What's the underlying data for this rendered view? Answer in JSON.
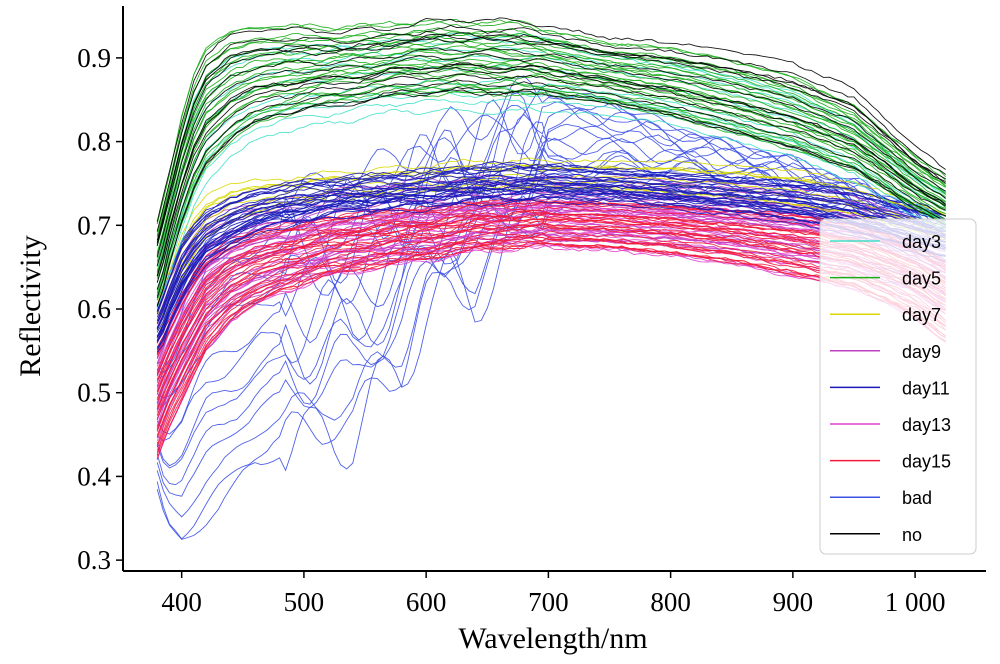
{
  "chart_data": {
    "type": "line",
    "title": "",
    "xlabel": "Wavelength/nm",
    "ylabel": "Reflectivity",
    "xlim": [
      352,
      1058
    ],
    "ylim": [
      0.287,
      0.962
    ],
    "xticks": [
      400,
      500,
      600,
      700,
      800,
      900,
      1000
    ],
    "xtick_labels": [
      "400",
      "500",
      "600",
      "700",
      "800",
      "900",
      "1 000"
    ],
    "yticks": [
      0.3,
      0.4,
      0.5,
      0.6,
      0.7,
      0.8,
      0.9
    ],
    "ytick_labels": [
      "0.3",
      "0.4",
      "0.5",
      "0.6",
      "0.7",
      "0.8",
      "0.9"
    ],
    "grid": false,
    "legend_position": "right",
    "x": [
      380,
      385,
      390,
      400,
      410,
      420,
      440,
      460,
      480,
      500,
      520,
      540,
      560,
      580,
      600,
      620,
      640,
      660,
      680,
      700,
      750,
      800,
      850,
      900,
      950,
      1000,
      1025
    ],
    "series": [
      {
        "name": "day3",
        "color": "#40e0c8",
        "upper": [
          0.68,
          0.71,
          0.74,
          0.8,
          0.85,
          0.88,
          0.9,
          0.91,
          0.915,
          0.915,
          0.915,
          0.918,
          0.92,
          0.922,
          0.925,
          0.927,
          0.927,
          0.927,
          0.927,
          0.925,
          0.905,
          0.895,
          0.88,
          0.86,
          0.825,
          0.76,
          0.74
        ],
        "lower": [
          0.6,
          0.62,
          0.64,
          0.68,
          0.72,
          0.75,
          0.78,
          0.8,
          0.81,
          0.815,
          0.82,
          0.825,
          0.83,
          0.835,
          0.835,
          0.835,
          0.835,
          0.835,
          0.835,
          0.835,
          0.83,
          0.82,
          0.8,
          0.78,
          0.75,
          0.71,
          0.69
        ],
        "count": 10
      },
      {
        "name": "day5",
        "color": "#1aad1a",
        "upper": [
          0.7,
          0.73,
          0.76,
          0.83,
          0.88,
          0.91,
          0.93,
          0.935,
          0.935,
          0.935,
          0.935,
          0.935,
          0.937,
          0.94,
          0.94,
          0.94,
          0.94,
          0.94,
          0.94,
          0.93,
          0.915,
          0.91,
          0.895,
          0.875,
          0.84,
          0.78,
          0.755
        ],
        "lower": [
          0.61,
          0.63,
          0.66,
          0.7,
          0.74,
          0.77,
          0.8,
          0.82,
          0.83,
          0.84,
          0.845,
          0.85,
          0.852,
          0.855,
          0.857,
          0.857,
          0.857,
          0.857,
          0.855,
          0.855,
          0.845,
          0.83,
          0.81,
          0.79,
          0.765,
          0.72,
          0.7
        ],
        "count": 24
      },
      {
        "name": "day7",
        "color": "#d8d800",
        "upper": [
          0.61,
          0.63,
          0.65,
          0.69,
          0.72,
          0.74,
          0.753,
          0.757,
          0.76,
          0.762,
          0.765,
          0.768,
          0.77,
          0.772,
          0.775,
          0.778,
          0.78,
          0.78,
          0.78,
          0.78,
          0.78,
          0.78,
          0.775,
          0.77,
          0.755,
          0.73,
          0.715
        ],
        "lower": [
          0.56,
          0.58,
          0.6,
          0.63,
          0.66,
          0.68,
          0.7,
          0.71,
          0.72,
          0.725,
          0.728,
          0.73,
          0.732,
          0.735,
          0.738,
          0.74,
          0.74,
          0.74,
          0.74,
          0.74,
          0.74,
          0.735,
          0.73,
          0.72,
          0.71,
          0.69,
          0.68
        ],
        "count": 8
      },
      {
        "name": "day9",
        "color": "#c040c0",
        "upper": [
          0.59,
          0.61,
          0.63,
          0.66,
          0.68,
          0.7,
          0.715,
          0.72,
          0.725,
          0.73,
          0.735,
          0.74,
          0.742,
          0.745,
          0.748,
          0.75,
          0.75,
          0.752,
          0.752,
          0.752,
          0.752,
          0.75,
          0.745,
          0.74,
          0.73,
          0.7,
          0.685
        ],
        "lower": [
          0.45,
          0.47,
          0.49,
          0.52,
          0.55,
          0.575,
          0.6,
          0.615,
          0.625,
          0.635,
          0.645,
          0.65,
          0.655,
          0.66,
          0.665,
          0.67,
          0.675,
          0.678,
          0.68,
          0.68,
          0.68,
          0.675,
          0.67,
          0.66,
          0.645,
          0.62,
          0.6
        ],
        "count": 22
      },
      {
        "name": "day11",
        "color": "#1a1ab8",
        "upper": [
          0.6,
          0.62,
          0.64,
          0.68,
          0.7,
          0.715,
          0.73,
          0.74,
          0.745,
          0.75,
          0.752,
          0.755,
          0.758,
          0.76,
          0.762,
          0.765,
          0.768,
          0.77,
          0.77,
          0.77,
          0.765,
          0.76,
          0.755,
          0.75,
          0.74,
          0.72,
          0.71
        ],
        "lower": [
          0.55,
          0.56,
          0.58,
          0.61,
          0.635,
          0.655,
          0.675,
          0.69,
          0.7,
          0.705,
          0.71,
          0.715,
          0.718,
          0.72,
          0.722,
          0.725,
          0.728,
          0.73,
          0.73,
          0.73,
          0.728,
          0.722,
          0.715,
          0.705,
          0.69,
          0.67,
          0.66
        ],
        "count": 30
      },
      {
        "name": "day13",
        "color": "#e040c8",
        "upper": [
          0.56,
          0.575,
          0.59,
          0.62,
          0.645,
          0.665,
          0.685,
          0.695,
          0.7,
          0.705,
          0.71,
          0.715,
          0.718,
          0.72,
          0.722,
          0.725,
          0.728,
          0.73,
          0.73,
          0.73,
          0.728,
          0.725,
          0.72,
          0.715,
          0.705,
          0.68,
          0.66
        ],
        "lower": [
          0.42,
          0.44,
          0.46,
          0.49,
          0.52,
          0.55,
          0.585,
          0.605,
          0.62,
          0.63,
          0.64,
          0.645,
          0.65,
          0.655,
          0.66,
          0.665,
          0.67,
          0.672,
          0.675,
          0.675,
          0.672,
          0.665,
          0.655,
          0.64,
          0.625,
          0.59,
          0.56
        ],
        "count": 20
      },
      {
        "name": "day15",
        "color": "#f21a3c",
        "upper": [
          0.56,
          0.575,
          0.59,
          0.62,
          0.645,
          0.665,
          0.685,
          0.695,
          0.7,
          0.705,
          0.71,
          0.715,
          0.718,
          0.72,
          0.722,
          0.725,
          0.728,
          0.73,
          0.73,
          0.73,
          0.728,
          0.725,
          0.72,
          0.715,
          0.705,
          0.68,
          0.66
        ],
        "lower": [
          0.42,
          0.44,
          0.46,
          0.49,
          0.52,
          0.55,
          0.585,
          0.605,
          0.62,
          0.63,
          0.64,
          0.645,
          0.65,
          0.655,
          0.66,
          0.665,
          0.67,
          0.672,
          0.675,
          0.675,
          0.672,
          0.665,
          0.655,
          0.64,
          0.625,
          0.59,
          0.56
        ],
        "count": 28
      },
      {
        "name": "bad",
        "color": "#3c50e6",
        "upper": [
          0.55,
          0.56,
          0.58,
          0.62,
          0.66,
          0.69,
          0.71,
          0.72,
          0.73,
          0.74,
          0.75,
          0.76,
          0.77,
          0.78,
          0.8,
          0.82,
          0.82,
          0.84,
          0.86,
          0.86,
          0.85,
          0.82,
          0.8,
          0.78,
          0.75,
          0.72,
          0.7
        ],
        "lower": [
          0.38,
          0.35,
          0.33,
          0.315,
          0.33,
          0.35,
          0.38,
          0.41,
          0.43,
          0.44,
          0.45,
          0.445,
          0.5,
          0.52,
          0.6,
          0.63,
          0.61,
          0.66,
          0.7,
          0.72,
          0.74,
          0.745,
          0.74,
          0.73,
          0.72,
          0.7,
          0.69
        ],
        "count": 16
      },
      {
        "name": "no",
        "color": "#000000",
        "upper": [
          0.7,
          0.73,
          0.76,
          0.82,
          0.87,
          0.9,
          0.925,
          0.93,
          0.93,
          0.93,
          0.928,
          0.928,
          0.93,
          0.935,
          0.94,
          0.942,
          0.942,
          0.94,
          0.94,
          0.935,
          0.92,
          0.915,
          0.905,
          0.89,
          0.86,
          0.79,
          0.765
        ],
        "lower": [
          0.6,
          0.62,
          0.65,
          0.7,
          0.74,
          0.77,
          0.8,
          0.82,
          0.83,
          0.835,
          0.84,
          0.845,
          0.85,
          0.855,
          0.857,
          0.857,
          0.857,
          0.857,
          0.855,
          0.855,
          0.845,
          0.83,
          0.81,
          0.79,
          0.765,
          0.72,
          0.7
        ],
        "count": 14
      }
    ]
  }
}
